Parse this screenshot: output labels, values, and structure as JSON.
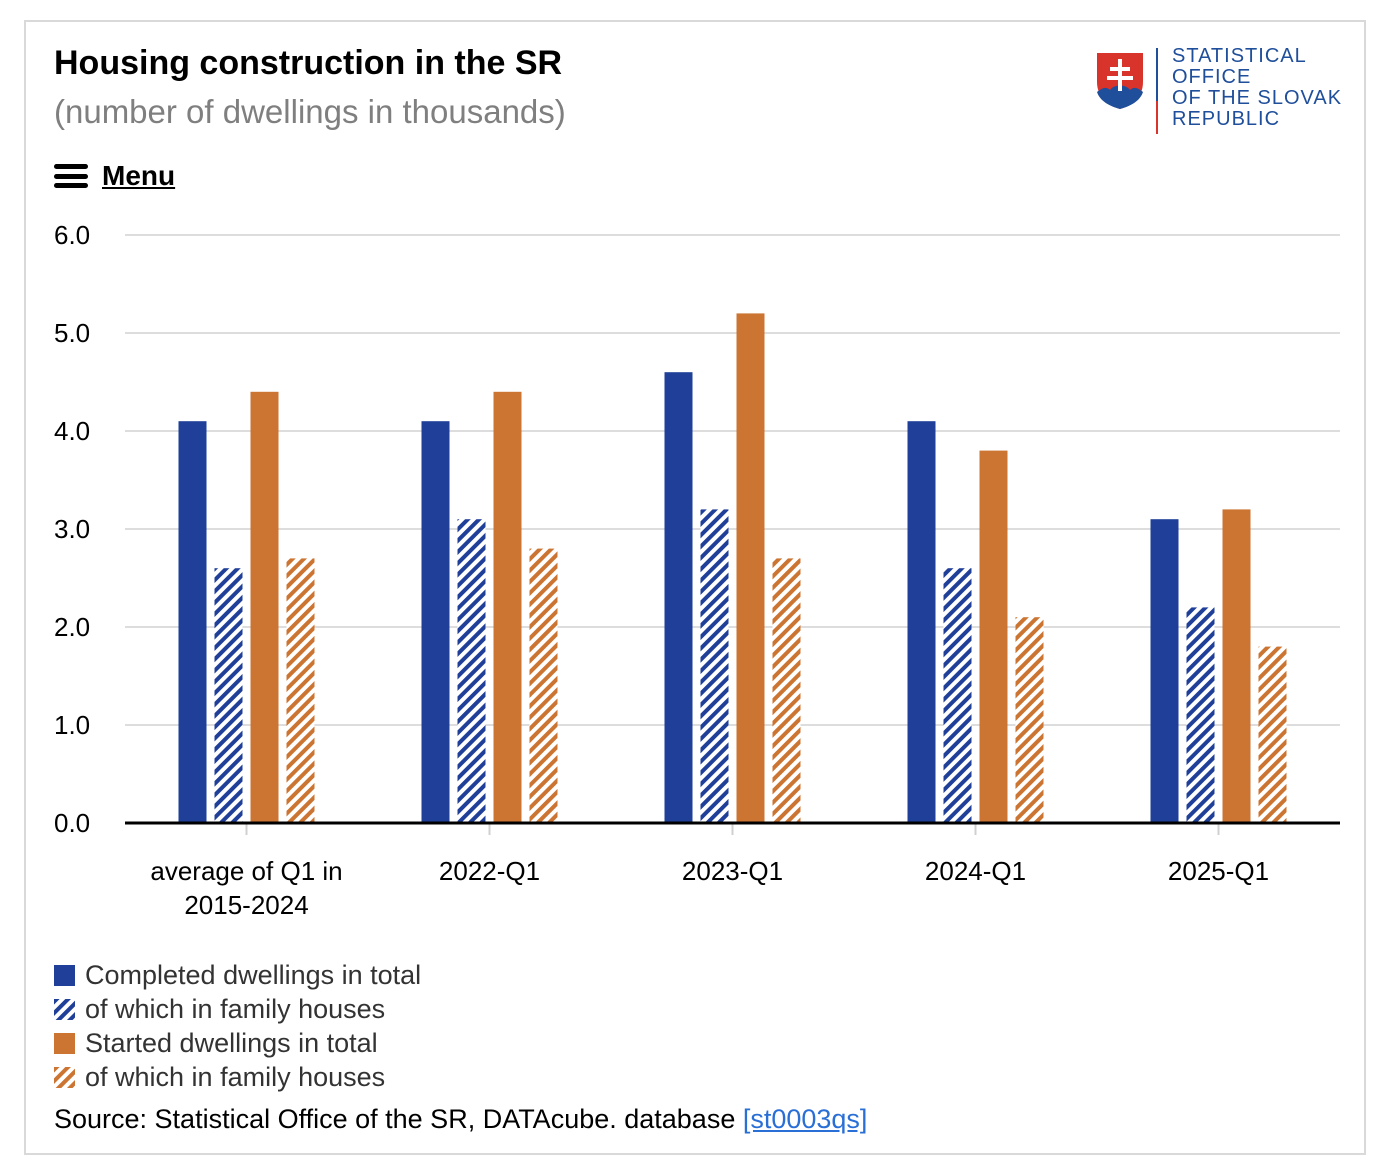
{
  "header": {
    "title": "Housing construction in the SR",
    "subtitle": "(number of dwellings in thousands)"
  },
  "logo": {
    "lines": [
      "STATISTICAL",
      "OFFICE",
      "OF THE SLOVAK",
      "REPUBLIC"
    ],
    "icon": "slovak-coat-of-arms-icon"
  },
  "menu": {
    "label": "Menu",
    "icon": "hamburger-icon"
  },
  "colors": {
    "completed": "#1f3f99",
    "started": "#cc7431",
    "grid": "#dddddd",
    "axis": "#000000"
  },
  "chart_data": {
    "type": "bar",
    "title": "Housing construction in the SR",
    "subtitle": "(number of dwellings in thousands)",
    "categories": [
      "average of Q1 in 2015-2024",
      "2022-Q1",
      "2023-Q1",
      "2024-Q1",
      "2025-Q1"
    ],
    "category_label_lines": [
      [
        "average of Q1 in",
        "2015-2024"
      ],
      [
        "2022-Q1"
      ],
      [
        "2023-Q1"
      ],
      [
        "2024-Q1"
      ],
      [
        "2025-Q1"
      ]
    ],
    "series": [
      {
        "name": "Completed dwellings in total",
        "values": [
          4.1,
          4.1,
          4.6,
          4.1,
          3.1
        ],
        "color": "#1f3f99",
        "pattern": "solid"
      },
      {
        "name": "of which in family houses",
        "values": [
          2.6,
          3.1,
          3.2,
          2.6,
          2.2
        ],
        "color": "#1f3f99",
        "pattern": "hatched"
      },
      {
        "name": "Started dwellings in total",
        "values": [
          4.4,
          4.4,
          5.2,
          3.8,
          3.2
        ],
        "color": "#cc7431",
        "pattern": "solid"
      },
      {
        "name": "of which in family houses",
        "values": [
          2.7,
          2.8,
          2.7,
          2.1,
          1.8
        ],
        "color": "#cc7431",
        "pattern": "hatched"
      }
    ],
    "ylim": [
      0,
      6
    ],
    "yticks": [
      "0.0",
      "1.0",
      "2.0",
      "3.0",
      "4.0",
      "5.0",
      "6.0"
    ],
    "grid": true,
    "legend_position": "bottom-left"
  },
  "source": {
    "text": "Source: Statistical Office of the SR, DATAcube. database ",
    "link": "[st0003qs]"
  }
}
